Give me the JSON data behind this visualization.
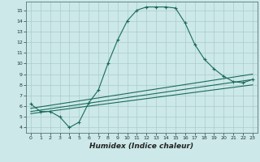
{
  "xlabel": "Humidex (Indice chaleur)",
  "background_color": "#cce8e8",
  "grid_color": "#aacccc",
  "line_color": "#1a6b5a",
  "xlim": [
    -0.5,
    23.5
  ],
  "ylim": [
    3.5,
    15.8
  ],
  "yticks": [
    4,
    5,
    6,
    7,
    8,
    9,
    10,
    11,
    12,
    13,
    14,
    15
  ],
  "xticks": [
    0,
    1,
    2,
    3,
    4,
    5,
    6,
    7,
    8,
    9,
    10,
    11,
    12,
    13,
    14,
    15,
    16,
    17,
    18,
    19,
    20,
    21,
    22,
    23
  ],
  "main_line": {
    "x": [
      0,
      1,
      2,
      3,
      4,
      5,
      6,
      7,
      8,
      9,
      10,
      11,
      12,
      13,
      14,
      15,
      16,
      17,
      18,
      19,
      20,
      21,
      22,
      23
    ],
    "y": [
      6.2,
      5.5,
      5.5,
      5.0,
      4.0,
      4.5,
      6.3,
      7.5,
      10.0,
      12.2,
      14.0,
      15.0,
      15.3,
      15.3,
      15.3,
      15.2,
      13.8,
      11.8,
      10.4,
      9.5,
      8.8,
      8.3,
      8.2,
      8.5
    ]
  },
  "diagonal_lines": [
    {
      "x": [
        0,
        23
      ],
      "y": [
        5.8,
        9.0
      ]
    },
    {
      "x": [
        0,
        23
      ],
      "y": [
        5.5,
        8.5
      ]
    },
    {
      "x": [
        0,
        23
      ],
      "y": [
        5.3,
        8.0
      ]
    }
  ]
}
